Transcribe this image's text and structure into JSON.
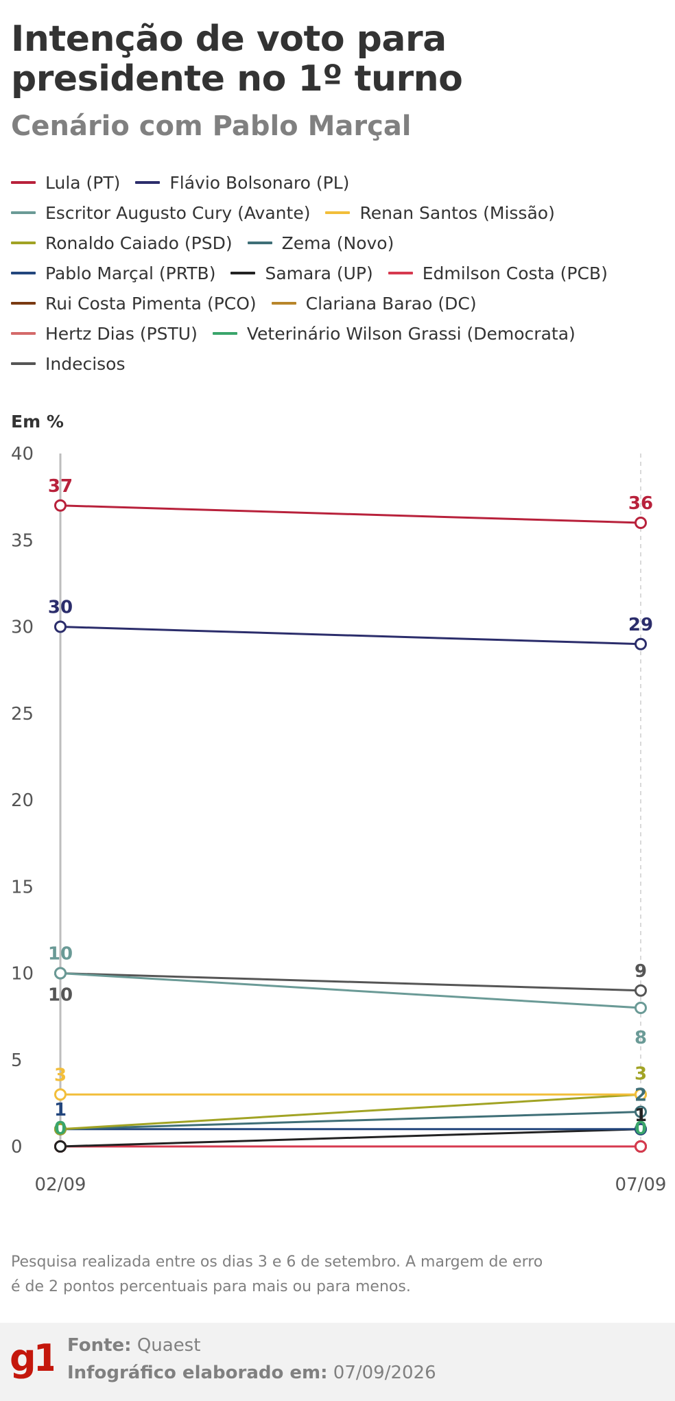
{
  "title": "Intenção de voto para presidente no 1º turno",
  "subtitle": "Cenário com Pablo Marçal",
  "unit_label": "Em %",
  "footnote": "Pesquisa realizada entre os dias 3 e 6 de setembro. A margem de erro é de 2 pontos percentuais para mais ou para menos.",
  "footer": {
    "source_label": "Fonte:",
    "source_value": "Quaest",
    "made_label": "Infográfico elaborado em:",
    "made_value": "07/09/2026",
    "logo_text": "g1"
  },
  "colors": {
    "brand": "#c4170c",
    "axis_left": "#bdbdbd",
    "axis_right_dashed": "#d9d9d9"
  },
  "chart_data": {
    "type": "line",
    "x": [
      "02/09",
      "07/09"
    ],
    "ylim": [
      0,
      40
    ],
    "yticks": [
      0,
      5,
      10,
      15,
      20,
      25,
      30,
      35,
      40
    ],
    "ylabel": "Em %",
    "grid": false,
    "legend_position": "top",
    "series": [
      {
        "name": "Lula (PT)",
        "color": "#b8213b",
        "values": [
          37,
          36
        ],
        "labels": [
          "37",
          "36"
        ]
      },
      {
        "name": "Flávio Bolsonaro (PL)",
        "color": "#2b2d6b",
        "values": [
          30,
          29
        ],
        "labels": [
          "30",
          "29"
        ]
      },
      {
        "name": "Escritor Augusto Cury (Avante)",
        "color": "#6a9a96",
        "values": [
          10,
          8
        ],
        "labels": [
          "10",
          "8"
        ]
      },
      {
        "name": "Renan Santos (Missão)",
        "color": "#f2be3a",
        "values": [
          3,
          3
        ],
        "labels": [
          "3",
          ""
        ]
      },
      {
        "name": "Ronaldo Caiado (PSD)",
        "color": "#a1a324",
        "values": [
          1,
          3
        ],
        "labels": [
          "",
          "3"
        ]
      },
      {
        "name": "Zema (Novo)",
        "color": "#3f6f77",
        "values": [
          1,
          2
        ],
        "labels": [
          "",
          "2"
        ]
      },
      {
        "name": "Pablo Marçal (PRTB)",
        "color": "#23467d",
        "values": [
          1,
          1
        ],
        "labels": [
          "1",
          ""
        ]
      },
      {
        "name": "Samara (UP)",
        "color": "#222222",
        "values": [
          0,
          1
        ],
        "labels": [
          "",
          "1"
        ]
      },
      {
        "name": "Edmilson Costa (PCB)",
        "color": "#d6394f",
        "values": [
          0,
          0
        ],
        "labels": [
          "",
          ""
        ]
      },
      {
        "name": "Rui Costa Pimenta (PCO)",
        "color": "#7a3a12",
        "values": [
          0,
          0
        ],
        "labels": [
          "",
          ""
        ]
      },
      {
        "name": "Clariana Barao (DC)",
        "color": "#b8862b",
        "values": [
          0,
          0
        ],
        "labels": [
          "",
          ""
        ]
      },
      {
        "name": "Hertz Dias (PSTU)",
        "color": "#d46a6a",
        "values": [
          0,
          0
        ],
        "labels": [
          "",
          ""
        ]
      },
      {
        "name": "Veterinário Wilson Grassi (Democrata)",
        "color": "#3aa56b",
        "values": [
          0,
          0
        ],
        "labels": [
          "0",
          "0"
        ]
      },
      {
        "name": "Indecisos",
        "color": "#555555",
        "values": [
          10,
          9
        ],
        "labels": [
          "10",
          "9"
        ]
      }
    ]
  }
}
